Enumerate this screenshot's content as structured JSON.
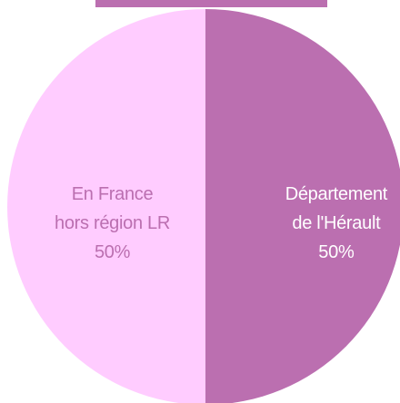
{
  "chart_data": {
    "type": "pie",
    "categories": [
      "Département\nde l'Hérault",
      "En France\nhors région LR"
    ],
    "values": [
      50,
      50
    ],
    "value_labels": [
      "50%",
      "50%"
    ],
    "colors": [
      "#bb6fb0",
      "#ffccff"
    ],
    "label_colors": [
      "#ffffff",
      "#bb6fb0"
    ]
  }
}
